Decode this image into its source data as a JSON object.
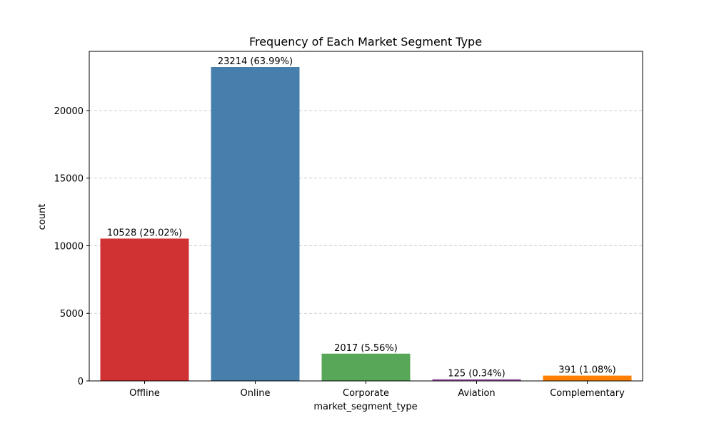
{
  "chart_data": {
    "type": "bar",
    "title": "Frequency of Each Market Segment Type",
    "xlabel": "market_segment_type",
    "ylabel": "count",
    "categories": [
      "Offline",
      "Online",
      "Corporate",
      "Aviation",
      "Complementary"
    ],
    "values": [
      10528,
      23214,
      2017,
      125,
      391
    ],
    "data_labels": [
      "10528 (29.02%)",
      "23214 (63.99%)",
      "2017 (5.56%)",
      "125 (0.34%)",
      "391 (1.08%)"
    ],
    "colors": [
      "#d03133",
      "#467eac",
      "#58a758",
      "#9c53a6",
      "#ff8000"
    ],
    "yticks": [
      0,
      5000,
      10000,
      15000,
      20000
    ],
    "ylim": [
      0,
      24375
    ],
    "grid": "y-dashed",
    "legend": "none"
  }
}
